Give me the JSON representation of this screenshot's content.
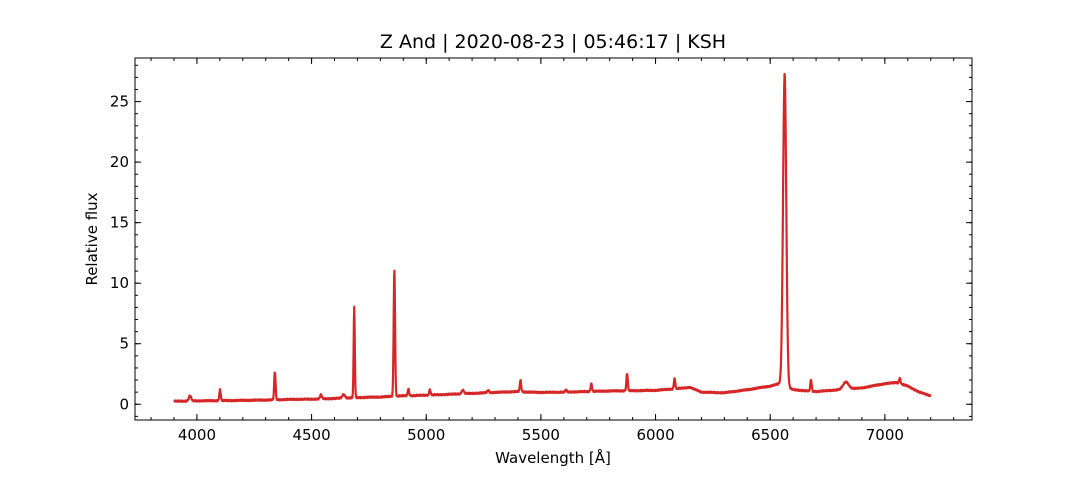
{
  "chart_data": {
    "type": "line",
    "title": "Z And | 2020-08-23 | 05:46:17 | KSH",
    "xlabel": "Wavelength [Å]",
    "ylabel": "Relative flux",
    "xlim": [
      3730,
      7380
    ],
    "ylim": [
      -1.3,
      28.6
    ],
    "xticks": [
      4000,
      4500,
      5000,
      5500,
      6000,
      6500,
      7000
    ],
    "yticks": [
      0,
      5,
      10,
      15,
      20,
      25
    ],
    "xminor_step": 100,
    "yminor_step": 1,
    "grid": false,
    "legend": "none",
    "line_color": "#d62728",
    "baseline": [
      [
        3900,
        0.25
      ],
      [
        4000,
        0.28
      ],
      [
        4100,
        0.3
      ],
      [
        4200,
        0.32
      ],
      [
        4300,
        0.35
      ],
      [
        4400,
        0.4
      ],
      [
        4500,
        0.42
      ],
      [
        4600,
        0.48
      ],
      [
        4700,
        0.55
      ],
      [
        4800,
        0.6
      ],
      [
        4850,
        0.65
      ],
      [
        4900,
        0.7
      ],
      [
        4950,
        0.72
      ],
      [
        5000,
        0.75
      ],
      [
        5100,
        0.82
      ],
      [
        5200,
        0.9
      ],
      [
        5300,
        0.98
      ],
      [
        5400,
        1.05
      ],
      [
        5450,
        1.0
      ],
      [
        5500,
        0.98
      ],
      [
        5600,
        1.0
      ],
      [
        5700,
        1.05
      ],
      [
        5800,
        1.1
      ],
      [
        5900,
        1.12
      ],
      [
        6000,
        1.15
      ],
      [
        6100,
        1.3
      ],
      [
        6150,
        1.4
      ],
      [
        6200,
        1.0
      ],
      [
        6300,
        0.95
      ],
      [
        6400,
        1.2
      ],
      [
        6500,
        1.5
      ],
      [
        6540,
        1.7
      ],
      [
        6600,
        1.2
      ],
      [
        6700,
        1.05
      ],
      [
        6800,
        1.2
      ],
      [
        6900,
        1.35
      ],
      [
        7000,
        1.7
      ],
      [
        7050,
        1.8
      ],
      [
        7100,
        1.5
      ],
      [
        7150,
        1.0
      ],
      [
        7200,
        0.7
      ]
    ],
    "lines": [
      {
        "center": 3970,
        "peak": 0.45,
        "width": 5
      },
      {
        "center": 4101,
        "peak": 0.9,
        "width": 3
      },
      {
        "center": 4340,
        "peak": 2.3,
        "width": 3
      },
      {
        "center": 4541,
        "peak": 0.35,
        "width": 4
      },
      {
        "center": 4640,
        "peak": 0.3,
        "width": 6
      },
      {
        "center": 4686,
        "peak": 7.45,
        "width": 2.5
      },
      {
        "center": 4861,
        "peak": 10.5,
        "width": 3
      },
      {
        "center": 4922,
        "peak": 0.55,
        "width": 3
      },
      {
        "center": 5016,
        "peak": 0.45,
        "width": 3
      },
      {
        "center": 5160,
        "peak": 0.3,
        "width": 5
      },
      {
        "center": 5270,
        "peak": 0.2,
        "width": 4
      },
      {
        "center": 5411,
        "peak": 0.95,
        "width": 3
      },
      {
        "center": 5610,
        "peak": 0.2,
        "width": 3
      },
      {
        "center": 5720,
        "peak": 0.65,
        "width": 3
      },
      {
        "center": 5876,
        "peak": 1.45,
        "width": 3
      },
      {
        "center": 6083,
        "peak": 0.85,
        "width": 3
      },
      {
        "center": 6563,
        "peak": 25.8,
        "width": 7
      },
      {
        "center": 6678,
        "peak": 0.95,
        "width": 3
      },
      {
        "center": 6830,
        "peak": 0.6,
        "width": 12
      },
      {
        "center": 7065,
        "peak": 0.45,
        "width": 3
      }
    ],
    "x_min": 3900,
    "x_max": 7200,
    "x_step": 1.5
  }
}
